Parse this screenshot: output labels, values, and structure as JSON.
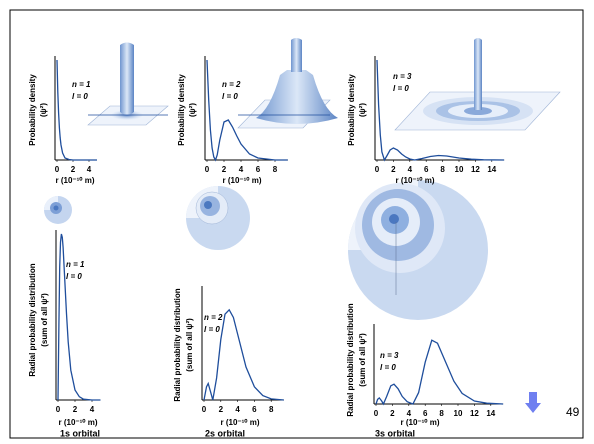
{
  "chart_data": [
    {
      "type": "line",
      "y_label": [
        "Probability density",
        "(ψ²)"
      ],
      "x_label": "r (10⁻¹⁰ m)",
      "annotations": [
        "n = 1",
        "l = 0"
      ],
      "x": [
        0,
        0.1,
        0.2,
        0.3,
        0.4,
        0.5,
        0.7,
        1,
        1.5,
        2,
        3,
        4,
        5
      ],
      "values": [
        1,
        0.68,
        0.47,
        0.32,
        0.22,
        0.15,
        0.07,
        0.02,
        0.005,
        0,
        0,
        0,
        0
      ],
      "color": "#1f4e9c",
      "xlim": [
        0,
        5
      ],
      "xticks": [
        0,
        2,
        4
      ],
      "ylim": [
        0,
        1
      ]
    },
    {
      "type": "line",
      "y_label": [
        "Probability density",
        "(ψ²)"
      ],
      "x_label": "r (10⁻¹⁰ m)",
      "annotations": [
        "n = 2",
        "l = 0"
      ],
      "x": [
        0,
        0.2,
        0.4,
        0.6,
        0.8,
        1,
        1.2,
        1.5,
        2,
        2.5,
        3,
        3.5,
        4,
        5,
        6,
        7,
        8,
        9.5
      ],
      "values": [
        1,
        0.6,
        0.3,
        0.12,
        0.03,
        0,
        0.05,
        0.2,
        0.38,
        0.4,
        0.33,
        0.24,
        0.16,
        0.06,
        0.02,
        0.01,
        0,
        0
      ],
      "color": "#1f4e9c",
      "xlim": [
        0,
        9.5
      ],
      "xticks": [
        0,
        2,
        4,
        6,
        8
      ],
      "ylim": [
        0,
        1
      ]
    },
    {
      "type": "line",
      "y_label": [
        "Probability density",
        "(ψ²)"
      ],
      "x_label": "r (10⁻¹⁰ m)",
      "annotations": [
        "n = 3",
        "l = 0"
      ],
      "x": [
        0,
        0.2,
        0.4,
        0.6,
        0.9,
        1.2,
        1.6,
        2,
        2.5,
        3,
        3.5,
        4,
        4.6,
        5.5,
        6.5,
        7.5,
        8.5,
        10,
        11.5,
        13,
        15.5
      ],
      "values": [
        1,
        0.55,
        0.25,
        0.08,
        0,
        0.04,
        0.1,
        0.12,
        0.1,
        0.06,
        0.03,
        0.01,
        0,
        0.015,
        0.035,
        0.045,
        0.04,
        0.02,
        0.008,
        0.002,
        0
      ],
      "color": "#1f4e9c",
      "xlim": [
        0,
        15.5
      ],
      "xticks": [
        0,
        2,
        4,
        6,
        8,
        10,
        12,
        14
      ],
      "ylim": [
        0,
        1
      ]
    },
    {
      "type": "line",
      "y_label": [
        "Radial probability distribution",
        "(sum of all ψ²)"
      ],
      "x_label": "r (10⁻¹⁰ m)",
      "annotations": [
        "n = 1",
        "l = 0"
      ],
      "caption": "1s orbital",
      "x": [
        0,
        0.1,
        0.2,
        0.3,
        0.4,
        0.5,
        0.6,
        0.8,
        1,
        1.2,
        1.5,
        2,
        2.5,
        3,
        4,
        5
      ],
      "values": [
        0,
        0.45,
        0.8,
        0.95,
        1,
        0.98,
        0.92,
        0.72,
        0.52,
        0.35,
        0.18,
        0.06,
        0.02,
        0.005,
        0,
        0
      ],
      "color": "#1f4e9c",
      "xlim": [
        0,
        5
      ],
      "xticks": [
        0,
        2,
        4
      ],
      "ylim": [
        0,
        1
      ]
    },
    {
      "type": "line",
      "y_label": [
        "Radial probability distribution",
        "(sum of all ψ²)"
      ],
      "x_label": "r (10⁻¹⁰ m)",
      "annotations": [
        "n = 2",
        "l = 0"
      ],
      "caption": "2s orbital",
      "x": [
        0,
        0.3,
        0.5,
        0.8,
        1.05,
        1.5,
        2,
        2.5,
        3,
        3.5,
        4,
        5,
        6,
        7,
        8,
        9.5
      ],
      "values": [
        0,
        0.12,
        0.15,
        0.07,
        0,
        0.2,
        0.55,
        0.78,
        0.82,
        0.75,
        0.6,
        0.3,
        0.12,
        0.04,
        0.01,
        0
      ],
      "color": "#1f4e9c",
      "xlim": [
        0,
        9.5
      ],
      "xticks": [
        0,
        2,
        4,
        6,
        8
      ],
      "ylim": [
        0,
        1
      ]
    },
    {
      "type": "line",
      "y_label": [
        "Radial probability distribution",
        "(sum of all ψ²)"
      ],
      "x_label": "r (10⁻¹⁰ m)",
      "annotations": [
        "n = 3",
        "l = 0"
      ],
      "caption": "3s orbital",
      "x": [
        0,
        0.2,
        0.4,
        0.7,
        0.9,
        1.3,
        1.8,
        2.2,
        2.7,
        3.2,
        3.8,
        4.5,
        5.2,
        6,
        6.8,
        7.5,
        8.5,
        9.5,
        10.5,
        12,
        13.5,
        15.5
      ],
      "values": [
        0,
        0.06,
        0.08,
        0.04,
        0,
        0.1,
        0.24,
        0.26,
        0.2,
        0.1,
        0.03,
        0,
        0.15,
        0.55,
        0.84,
        0.8,
        0.55,
        0.3,
        0.14,
        0.04,
        0.01,
        0
      ],
      "color": "#1f4e9c",
      "xlim": [
        0,
        15.5
      ],
      "xticks": [
        0,
        2,
        4,
        6,
        8,
        10,
        12,
        14
      ],
      "ylim": [
        0,
        1
      ]
    }
  ],
  "slide_number": 49
}
